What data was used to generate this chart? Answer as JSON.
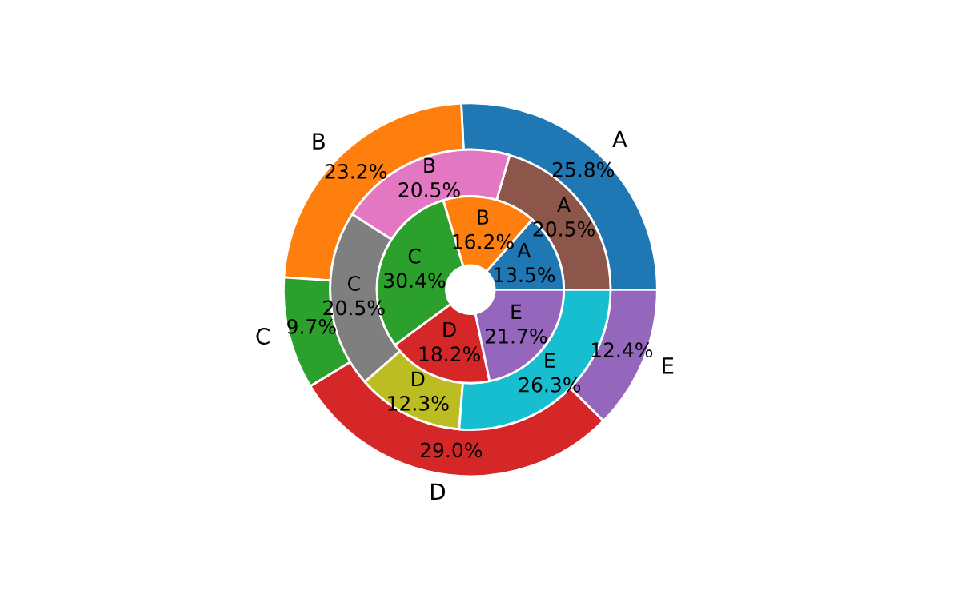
{
  "chart_data": {
    "type": "donut",
    "categories": [
      "A",
      "B",
      "C",
      "D",
      "E"
    ],
    "series": [
      {
        "values": [
          25.8,
          23.2,
          9.7,
          29.0,
          12.4
        ],
        "colors": [
          "#1f77b4",
          "#ff7f0e",
          "#2ca02c",
          "#d62728",
          "#9467bd"
        ],
        "value_labels": [
          "25.8%",
          "23.2%",
          "9.7%",
          "29.0%",
          "12.4%"
        ]
      },
      {
        "values": [
          20.5,
          20.5,
          20.5,
          12.3,
          26.3
        ],
        "colors": [
          "#8c564b",
          "#e377c2",
          "#7f7f7f",
          "#bcbd22",
          "#17becf"
        ],
        "value_labels": [
          "20.5%",
          "20.5%",
          "20.5%",
          "12.3%",
          "26.3%"
        ]
      },
      {
        "values": [
          13.5,
          16.2,
          30.4,
          18.2,
          21.7
        ],
        "colors": [
          "#1f77b4",
          "#ff7f0e",
          "#2ca02c",
          "#d62728",
          "#9467bd"
        ],
        "value_labels": [
          "13.5%",
          "16.2%",
          "30.4%",
          "18.2%",
          "21.7%"
        ]
      }
    ]
  }
}
